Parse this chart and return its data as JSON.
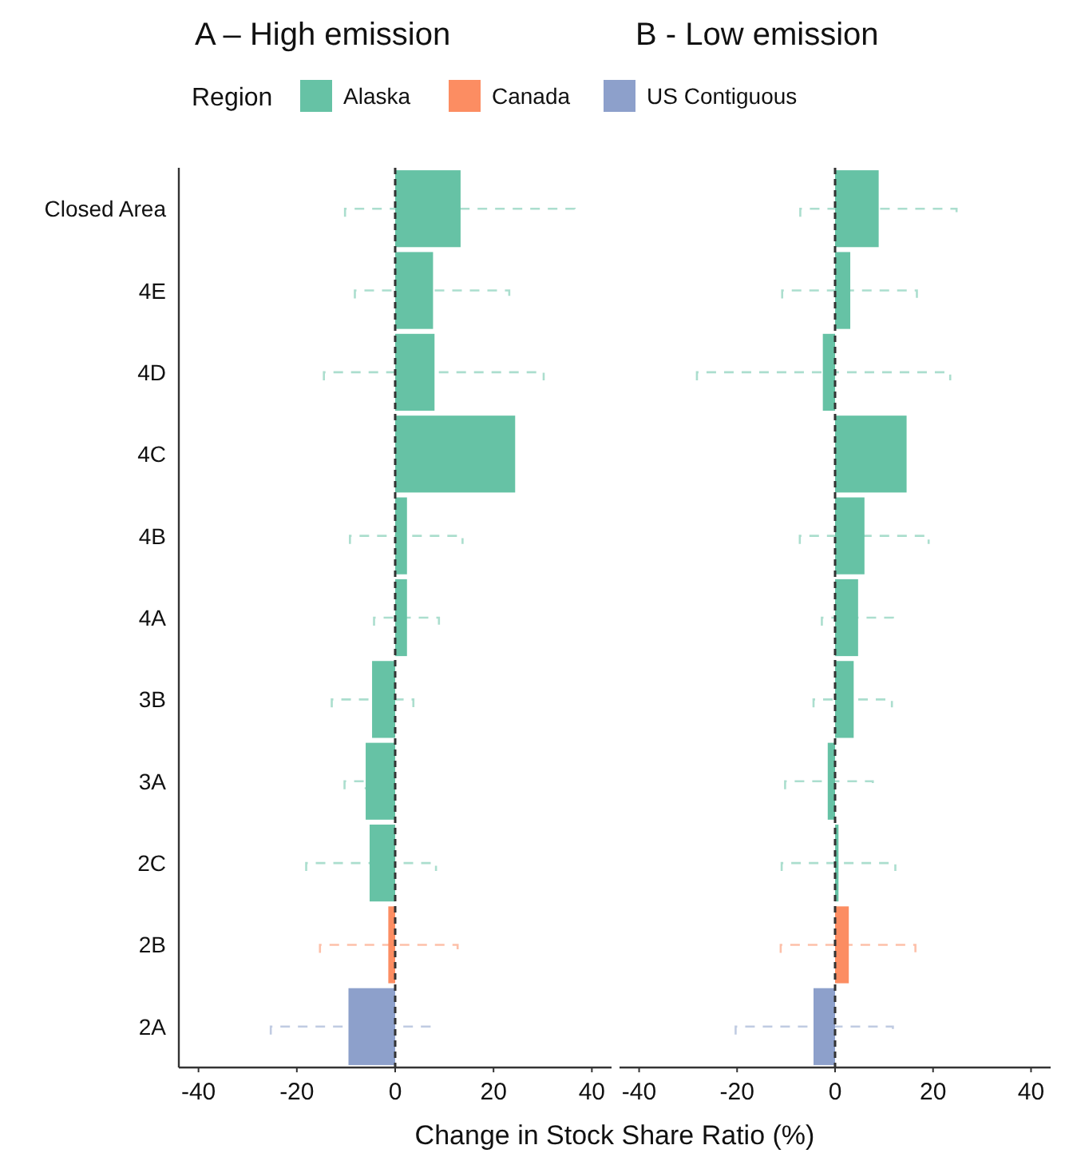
{
  "chart_data": [
    {
      "type": "bar",
      "title": "A – High emission",
      "orientation": "horizontal",
      "legend": "top",
      "legend_title": "Region",
      "xlabel": "Change in Stock Share Ratio (%)",
      "categories": [
        "Closed Area",
        "4E",
        "4D",
        "4C",
        "4B",
        "4A",
        "3B",
        "3A",
        "2C",
        "2B",
        "2A"
      ],
      "xlim": [
        -44,
        44
      ],
      "xticks": [
        -40,
        -20,
        0,
        20,
        40
      ],
      "ref_lines": [
        {
          "axis": "x",
          "value": 0,
          "line_style": "dashed",
          "color": "#333333"
        }
      ],
      "series": [
        {
          "name": "Alaska",
          "color": "#66c2a5",
          "values": [
            13.3,
            7.7,
            8.0,
            24.4,
            2.4,
            2.4,
            -4.7,
            -6.0,
            -5.2,
            null,
            null
          ],
          "errors": [
            [
              -10.2,
              36.5
            ],
            [
              -8.2,
              23.2
            ],
            [
              -14.5,
              30.2
            ],
            null,
            [
              -9.2,
              13.7
            ],
            [
              -4.3,
              8.9
            ],
            [
              -12.9,
              3.7
            ],
            [
              -10.3,
              -6.0
            ],
            [
              -18.1,
              8.3
            ],
            null,
            null
          ]
        },
        {
          "name": "Canada",
          "color": "#fc8d62",
          "values": [
            null,
            null,
            null,
            null,
            null,
            null,
            null,
            null,
            null,
            -1.4,
            null
          ],
          "errors": [
            null,
            null,
            null,
            null,
            null,
            null,
            null,
            null,
            null,
            [
              -15.3,
              12.7
            ],
            null
          ]
        },
        {
          "name": "US Contiguous",
          "color": "#8da0cb",
          "values": [
            null,
            null,
            null,
            null,
            null,
            null,
            null,
            null,
            null,
            null,
            -9.5
          ],
          "errors": [
            null,
            null,
            null,
            null,
            null,
            null,
            null,
            null,
            null,
            null,
            [
              -25.3,
              7.0
            ]
          ]
        }
      ]
    },
    {
      "type": "bar",
      "title": "B - Low emission",
      "orientation": "horizontal",
      "tick_labels": "x",
      "categories": [
        "Closed Area",
        "4E",
        "4D",
        "4C",
        "4B",
        "4A",
        "3B",
        "3A",
        "2C",
        "2B",
        "2A"
      ],
      "xlim": [
        -44,
        44
      ],
      "xticks": [
        -40,
        -20,
        0,
        20,
        40
      ],
      "ref_lines": [
        {
          "axis": "x",
          "value": 0,
          "line_style": "dashed",
          "color": "#333333"
        }
      ],
      "series": [
        {
          "color": "#66c2a5",
          "values": [
            8.9,
            3.1,
            -2.5,
            14.6,
            6.0,
            4.7,
            3.8,
            -1.5,
            0.7,
            null,
            null
          ],
          "errors": [
            [
              -7.1,
              24.8
            ],
            [
              -10.8,
              16.7
            ],
            [
              -28.2,
              23.5
            ],
            null,
            [
              -7.2,
              19.1
            ],
            [
              -2.7,
              11.8
            ],
            [
              -4.4,
              11.6
            ],
            [
              -10.2,
              7.7
            ],
            [
              -10.9,
              12.3
            ],
            null,
            null
          ]
        },
        {
          "color": "#fc8d62",
          "values": [
            null,
            null,
            null,
            null,
            null,
            null,
            null,
            null,
            null,
            2.8,
            null
          ],
          "errors": [
            null,
            null,
            null,
            null,
            null,
            null,
            null,
            null,
            null,
            [
              -11.1,
              16.4
            ],
            null
          ]
        },
        {
          "color": "#8da0cb",
          "values": [
            null,
            null,
            null,
            null,
            null,
            null,
            null,
            null,
            null,
            null,
            -4.4
          ],
          "errors": [
            null,
            null,
            null,
            null,
            null,
            null,
            null,
            null,
            null,
            null,
            [
              -20.3,
              11.8
            ]
          ]
        }
      ]
    }
  ]
}
